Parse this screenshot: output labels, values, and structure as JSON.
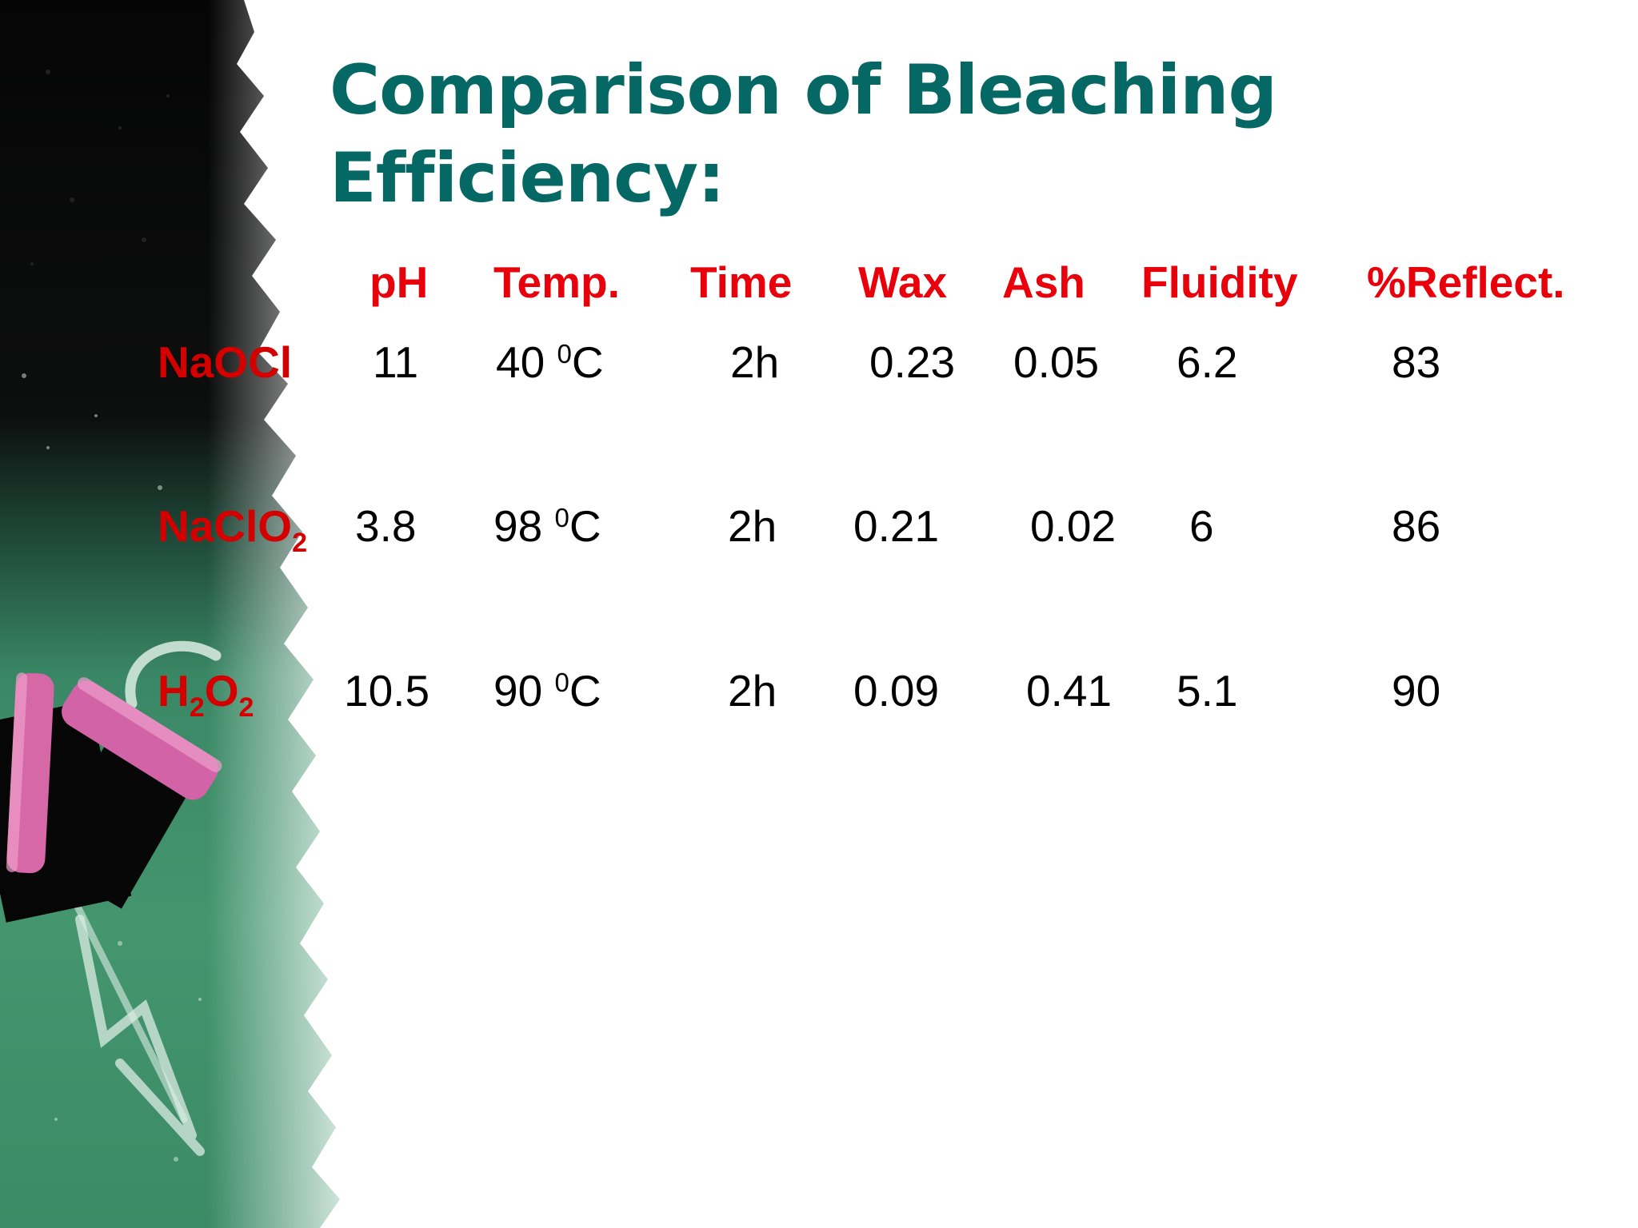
{
  "slide": {
    "title_line1": "Comparison of Bleaching",
    "title_line2": "Efficiency:"
  },
  "table": {
    "headers": {
      "ph": "pH",
      "temp": "Temp.",
      "time": "Time",
      "wax": "Wax",
      "ash": "Ash",
      "fluidity": "Fluidity",
      "reflect": "%Reflect."
    },
    "rows": [
      {
        "label": {
          "base": "NaOCl"
        },
        "ph": "11",
        "temp": {
          "value": "40",
          "sup": "0",
          "unit": "C"
        },
        "time": "2h",
        "wax": "0.23",
        "ash": "0.05",
        "fluidity": "6.2",
        "reflect": "83"
      },
      {
        "label": {
          "base": "NaClO",
          "sub1": "2"
        },
        "ph": "3.8",
        "temp": {
          "value": "98",
          "sup": "0",
          "unit": "C"
        },
        "time": "2h",
        "wax": "0.21",
        "ash": "0.02",
        "fluidity": "6",
        "reflect": "86"
      },
      {
        "label": {
          "a": "H",
          "sub1": "2",
          "b": "O",
          "sub2": "2"
        },
        "ph": "10.5",
        "temp": {
          "value": "90",
          "sup": "0",
          "unit": "C"
        },
        "time": "2h",
        "wax": "0.09",
        "ash": "0.41",
        "fluidity": "5.1",
        "reflect": "90"
      }
    ]
  },
  "colors": {
    "title": "#066865",
    "header": "#e8000b",
    "row_label": "#d40000",
    "value": "#000000",
    "chalkboard_black": "#0a0a0a",
    "chalkboard_green": "#3f8e6c",
    "chalk_pink": "#d668a8"
  }
}
